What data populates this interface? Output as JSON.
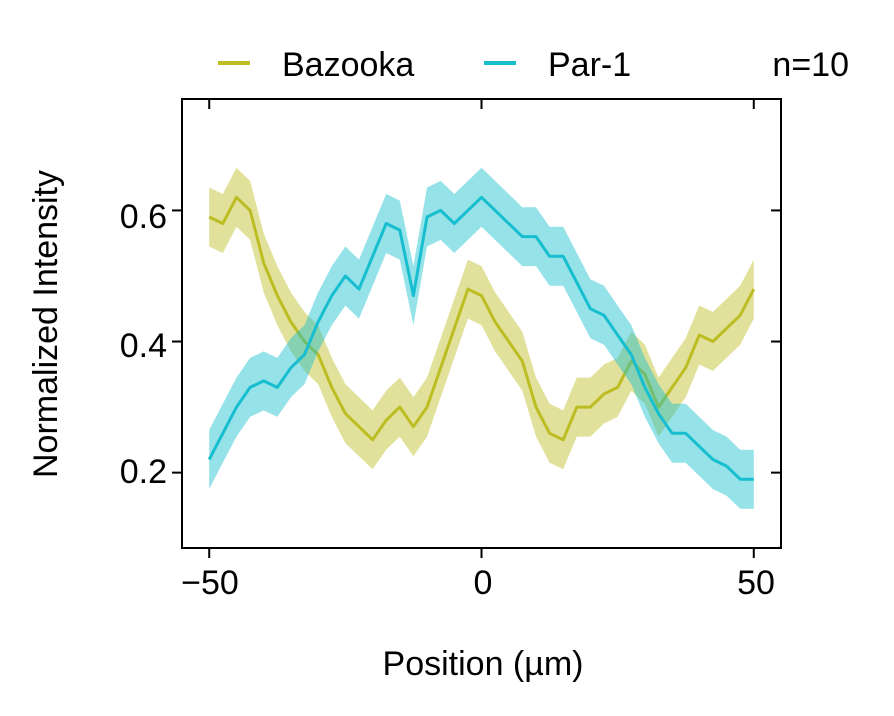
{
  "chart_data": {
    "type": "line",
    "xlabel": "Position (µm)",
    "ylabel": "Normalized Intensity",
    "annotation": "n=10",
    "xlim": [
      -55,
      55
    ],
    "ylim": [
      0.085,
      0.77
    ],
    "x_ticks": [
      -50,
      0,
      50
    ],
    "x_tick_labels": [
      "−50",
      "0",
      "50"
    ],
    "y_ticks": [
      0.2,
      0.4,
      0.6
    ],
    "y_tick_labels": [
      "0.2",
      "0.4",
      "0.6"
    ],
    "grid": false,
    "legend_position": "top",
    "series": [
      {
        "name": "Bazooka",
        "color": "#bcbd22",
        "x": [
          -50,
          -47.5,
          -45,
          -42.5,
          -40,
          -37.5,
          -35,
          -32.5,
          -30,
          -27.5,
          -25,
          -22.5,
          -20,
          -17.5,
          -15,
          -12.5,
          -10,
          -7.5,
          -5,
          -2.5,
          0,
          2.5,
          5,
          7.5,
          10,
          12.5,
          15,
          17.5,
          20,
          22.5,
          25,
          27.5,
          30,
          32.5,
          35,
          37.5,
          40,
          42.5,
          45,
          47.5,
          50
        ],
        "mean": [
          0.59,
          0.58,
          0.62,
          0.6,
          0.52,
          0.47,
          0.43,
          0.4,
          0.38,
          0.33,
          0.29,
          0.27,
          0.25,
          0.28,
          0.3,
          0.27,
          0.3,
          0.36,
          0.42,
          0.48,
          0.47,
          0.43,
          0.4,
          0.37,
          0.3,
          0.26,
          0.25,
          0.3,
          0.3,
          0.32,
          0.33,
          0.37,
          0.35,
          0.3,
          0.33,
          0.36,
          0.41,
          0.4,
          0.42,
          0.44,
          0.48
        ],
        "error": 0.045
      },
      {
        "name": "Par-1",
        "color": "#17becf",
        "x": [
          -50,
          -47.5,
          -45,
          -42.5,
          -40,
          -37.5,
          -35,
          -32.5,
          -30,
          -27.5,
          -25,
          -22.5,
          -20,
          -17.5,
          -15,
          -12.5,
          -10,
          -7.5,
          -5,
          -2.5,
          0,
          2.5,
          5,
          7.5,
          10,
          12.5,
          15,
          17.5,
          20,
          22.5,
          25,
          27.5,
          30,
          32.5,
          35,
          37.5,
          40,
          42.5,
          45,
          47.5,
          50
        ],
        "mean": [
          0.22,
          0.26,
          0.3,
          0.33,
          0.34,
          0.33,
          0.36,
          0.38,
          0.43,
          0.47,
          0.5,
          0.48,
          0.53,
          0.58,
          0.57,
          0.47,
          0.59,
          0.6,
          0.58,
          0.6,
          0.62,
          0.6,
          0.58,
          0.56,
          0.56,
          0.53,
          0.53,
          0.49,
          0.45,
          0.44,
          0.41,
          0.38,
          0.33,
          0.29,
          0.26,
          0.26,
          0.24,
          0.22,
          0.21,
          0.19,
          0.19
        ],
        "error": 0.045
      }
    ]
  }
}
